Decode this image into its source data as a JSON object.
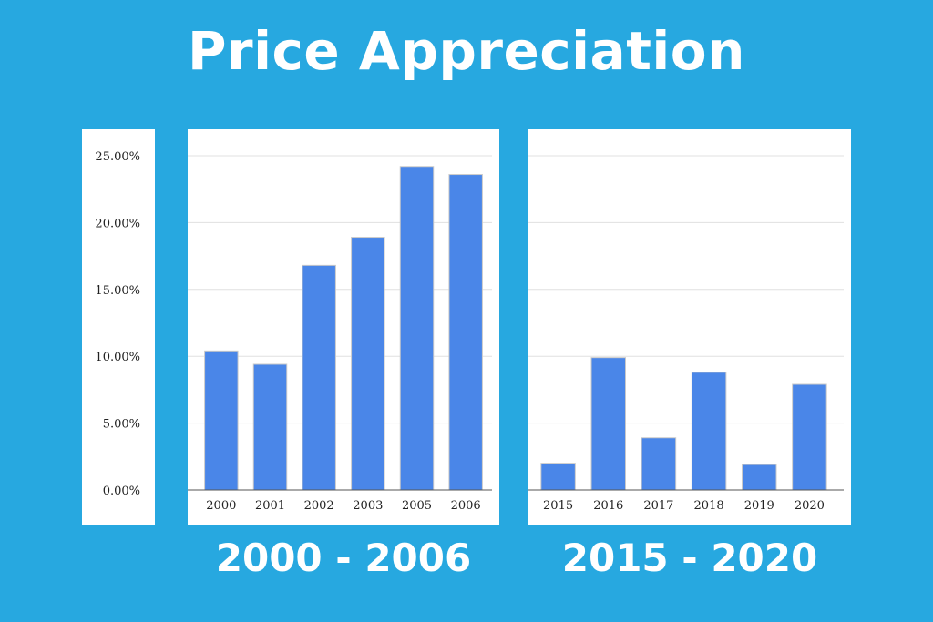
{
  "title": "Price Appreciation",
  "colors": {
    "background": "#27a8e0",
    "bar": "#4a86e8",
    "bar_outline": "#c9c9c9",
    "gridline": "#e0e0e0",
    "baseline": "#555555",
    "text": "#222222"
  },
  "chart_data": [
    {
      "type": "bar",
      "caption": "2000 - 2006",
      "categories": [
        "2000",
        "2001",
        "2002",
        "2003",
        "2005",
        "2006"
      ],
      "values": [
        10.4,
        9.4,
        16.8,
        18.9,
        24.2,
        23.6
      ],
      "ylim": [
        0,
        25
      ],
      "yticks": [
        "0.00%",
        "5.00%",
        "10.00%",
        "15.00%",
        "20.00%",
        "25.00%"
      ],
      "ytick_values": [
        0,
        5,
        10,
        15,
        20,
        25
      ],
      "grid": true,
      "xlabel": "",
      "ylabel": ""
    },
    {
      "type": "bar",
      "caption": "2015 - 2020",
      "categories": [
        "2015",
        "2016",
        "2017",
        "2018",
        "2019",
        "2020"
      ],
      "values": [
        2.0,
        9.9,
        3.9,
        8.8,
        1.9,
        7.9
      ],
      "ylim": [
        0,
        25
      ],
      "yticks": [
        "0.00%",
        "5.00%",
        "10.00%",
        "15.00%",
        "20.00%",
        "25.00%"
      ],
      "ytick_values": [
        0,
        5,
        10,
        15,
        20,
        25
      ],
      "grid": true,
      "xlabel": "",
      "ylabel": ""
    }
  ]
}
